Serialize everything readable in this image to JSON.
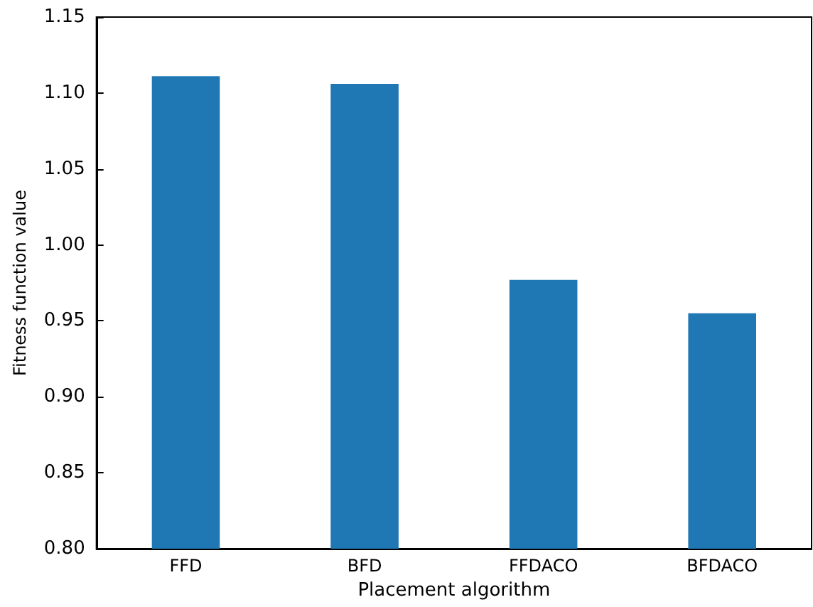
{
  "chart_data": {
    "type": "bar",
    "xlabel": "Placement algorithm",
    "ylabel": "Fitness function value",
    "categories": [
      "FFD",
      "BFD",
      "FFDACO",
      "BFDACO"
    ],
    "values": [
      1.111,
      1.106,
      0.977,
      0.955
    ],
    "color": "#1f77b4",
    "ylim": [
      0.8,
      1.15
    ],
    "yticks": [
      {
        "value": 0.8,
        "label": "0.80"
      },
      {
        "value": 0.85,
        "label": "0.85"
      },
      {
        "value": 0.9,
        "label": "0.90"
      },
      {
        "value": 0.95,
        "label": "0.95"
      },
      {
        "value": 1.0,
        "label": "1.00"
      },
      {
        "value": 1.05,
        "label": "1.05"
      },
      {
        "value": 1.1,
        "label": "1.10"
      },
      {
        "value": 1.15,
        "label": "1.15"
      }
    ],
    "data_labels": false
  }
}
